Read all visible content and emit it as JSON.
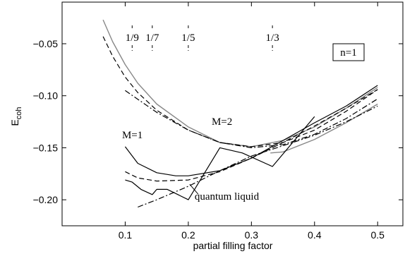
{
  "chart_data": {
    "type": "line",
    "xlabel": "partial filling factor",
    "ylabel": "E",
    "ylabel_sub": "coh",
    "xlim": [
      0.0,
      0.54
    ],
    "ylim": [
      -0.225,
      -0.01
    ],
    "xticks": [
      0.1,
      0.2,
      0.3,
      0.4,
      0.5
    ],
    "xtick_labels": [
      "0.1",
      "0.2",
      "0.3",
      "0.4",
      "0.5"
    ],
    "yticks": [
      -0.05,
      -0.1,
      -0.15,
      -0.2
    ],
    "ytick_labels": [
      "−0.05",
      "−0.10",
      "−0.15",
      "−0.20"
    ],
    "grid": false,
    "legend_box": "n=1",
    "annotations": [
      {
        "text": "M=2",
        "x": 0.237,
        "y": -0.128
      },
      {
        "text": "M=1",
        "x": 0.095,
        "y": -0.141
      },
      {
        "text": "quantum liquid",
        "x": 0.21,
        "y": -0.2
      }
    ],
    "fraction_markers": [
      {
        "label": "1/9",
        "x": 0.111
      },
      {
        "label": "1/7",
        "x": 0.1429
      },
      {
        "label": "1/5",
        "x": 0.2
      },
      {
        "label": "1/3",
        "x": 0.3333
      }
    ],
    "series": [
      {
        "style": "solid-gray",
        "x": [
          0.065,
          0.08,
          0.1,
          0.12,
          0.15,
          0.2,
          0.25,
          0.3,
          0.35,
          0.4,
          0.45,
          0.5
        ],
        "y": [
          -0.027,
          -0.048,
          -0.07,
          -0.088,
          -0.108,
          -0.13,
          -0.145,
          -0.149,
          -0.143,
          -0.13,
          -0.112,
          -0.092
        ]
      },
      {
        "style": "dashed",
        "x": [
          0.065,
          0.08,
          0.1,
          0.12,
          0.15,
          0.2,
          0.25,
          0.3,
          0.35,
          0.4,
          0.45,
          0.5
        ],
        "y": [
          -0.043,
          -0.062,
          -0.082,
          -0.097,
          -0.114,
          -0.133,
          -0.145,
          -0.149,
          -0.145,
          -0.133,
          -0.115,
          -0.094
        ]
      },
      {
        "style": "dashdot",
        "x": [
          0.1,
          0.15,
          0.2,
          0.25,
          0.3,
          0.35,
          0.4,
          0.45,
          0.5
        ],
        "y": [
          -0.095,
          -0.116,
          -0.133,
          -0.145,
          -0.15,
          -0.147,
          -0.137,
          -0.122,
          -0.103
        ]
      },
      {
        "style": "solid-black",
        "x": [
          0.1,
          0.12,
          0.15,
          0.18,
          0.2,
          0.25,
          0.3,
          0.35,
          0.4,
          0.45,
          0.5
        ],
        "y": [
          -0.149,
          -0.165,
          -0.174,
          -0.177,
          -0.177,
          -0.172,
          -0.16,
          -0.143,
          -0.126,
          -0.11,
          -0.09
        ]
      },
      {
        "style": "dashed",
        "x": [
          0.1,
          0.12,
          0.15,
          0.2,
          0.25,
          0.3,
          0.35,
          0.4,
          0.45,
          0.5
        ],
        "y": [
          -0.173,
          -0.179,
          -0.182,
          -0.181,
          -0.173,
          -0.16,
          -0.145,
          -0.129,
          -0.112,
          -0.094
        ]
      },
      {
        "style": "solid-gray",
        "x": [
          0.33,
          0.35,
          0.4,
          0.45,
          0.5
        ],
        "y": [
          -0.155,
          -0.154,
          -0.142,
          -0.126,
          -0.108
        ]
      },
      {
        "style": "dashdot",
        "x": [
          0.12,
          0.15,
          0.2,
          0.25,
          0.3,
          0.35,
          0.4,
          0.45,
          0.5
        ],
        "y": [
          -0.207,
          -0.2,
          -0.187,
          -0.172,
          -0.158,
          -0.148,
          -0.138,
          -0.125,
          -0.11
        ]
      },
      {
        "style": "solid-black",
        "x": [
          0.1,
          0.111,
          0.125,
          0.1429,
          0.15,
          0.1667,
          0.2,
          0.25,
          0.2857,
          0.3333,
          0.4
        ],
        "y": [
          -0.181,
          -0.183,
          -0.19,
          -0.195,
          -0.19,
          -0.19,
          -0.2,
          -0.15,
          -0.155,
          -0.168,
          -0.12
        ]
      }
    ]
  }
}
